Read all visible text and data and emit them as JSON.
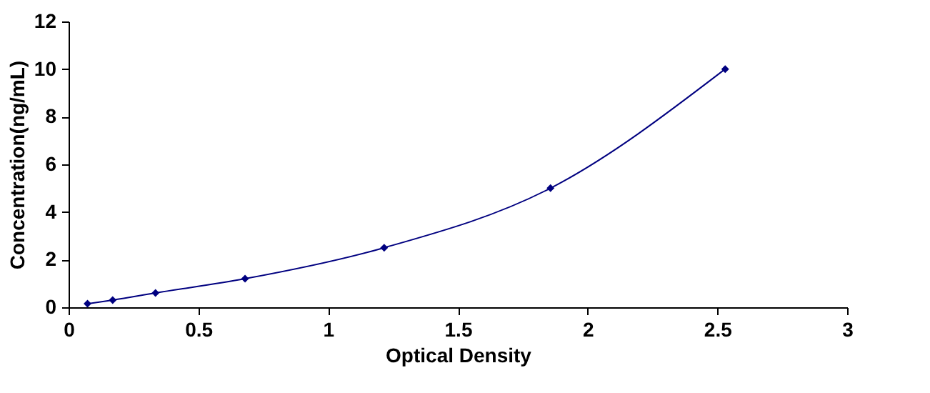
{
  "chart_data": {
    "type": "line",
    "xlabel": "Optical Density",
    "ylabel": "Concentration(ng/mL)",
    "x": [
      0.073,
      0.17,
      0.335,
      0.68,
      1.216,
      1.857,
      2.53
    ],
    "series": [
      {
        "color": "#000080",
        "values": [
          0.15,
          0.3,
          0.6,
          1.2,
          2.5,
          5,
          10
        ]
      }
    ],
    "xlim": [
      0,
      3
    ],
    "xticks": [
      0,
      0.5,
      1,
      1.5,
      2,
      2.5,
      3
    ],
    "ylim": [
      0,
      12
    ],
    "yticks": [
      0,
      2,
      4,
      6,
      8,
      10,
      12
    ],
    "grid": false,
    "marker": "diamond",
    "line_style": "solid"
  }
}
